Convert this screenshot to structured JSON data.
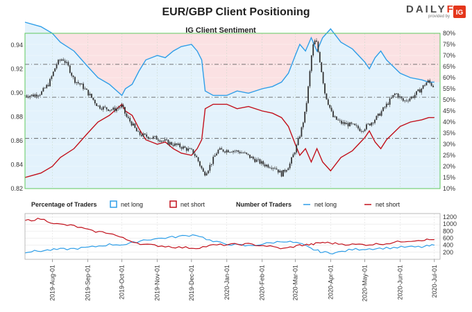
{
  "title": "EUR/GBP Client Positioning",
  "brand": {
    "text": "DAILY",
    "fx": "FX",
    "provided": "provided by",
    "badge": "IG",
    "badge_color": "#e4361b"
  },
  "colors": {
    "net_long": "#2e9ee8",
    "net_short": "#c2101b",
    "long_fill": "#e3f2fc",
    "short_fill": "#fbe1e3",
    "candle": "#333333",
    "plot_border": "#5cc85c"
  },
  "chart_data": [
    {
      "type": "line",
      "title": "IG Client Sentiment",
      "price_axis": {
        "range": [
          0.82,
          0.95
        ],
        "ticks": [
          "0.82",
          "0.84",
          "0.86",
          "0.88",
          "0.90",
          "0.92",
          "0.94"
        ]
      },
      "pct_axis": {
        "range": [
          10,
          80
        ],
        "ticks": [
          "10%",
          "15%",
          "20%",
          "25%",
          "30%",
          "35%",
          "40%",
          "45%",
          "50%",
          "55%",
          "60%",
          "65%",
          "70%",
          "75%",
          "80%"
        ]
      },
      "reference_lines": [
        0.862,
        0.8965,
        0.924
      ],
      "series": [
        {
          "name": "net long",
          "x": [
            "2019-07-08",
            "2019-07-22",
            "2019-08-01",
            "2019-08-08",
            "2019-08-20",
            "2019-09-01",
            "2019-09-10",
            "2019-09-20",
            "2019-10-01",
            "2019-10-04",
            "2019-10-10",
            "2019-10-16",
            "2019-10-22",
            "2019-11-01",
            "2019-11-08",
            "2019-11-15",
            "2019-11-22",
            "2019-12-01",
            "2019-12-06",
            "2019-12-10",
            "2019-12-13",
            "2019-12-20",
            "2020-01-01",
            "2020-01-10",
            "2020-01-20",
            "2020-02-01",
            "2020-02-10",
            "2020-02-18",
            "2020-02-24",
            "2020-03-01",
            "2020-03-05",
            "2020-03-10",
            "2020-03-15",
            "2020-03-20",
            "2020-03-25",
            "2020-04-01",
            "2020-04-10",
            "2020-04-20",
            "2020-05-01",
            "2020-05-05",
            "2020-05-10",
            "2020-05-15",
            "2020-05-20",
            "2020-06-01",
            "2020-06-10",
            "2020-06-20",
            "2020-06-26",
            "2020-07-01"
          ],
          "values": [
            85,
            83,
            80,
            76,
            72,
            65,
            60,
            57,
            52,
            55,
            57,
            63,
            68,
            70,
            69,
            72,
            74,
            75,
            72,
            68,
            54,
            52,
            52,
            54,
            53,
            55,
            56,
            58,
            62,
            70,
            75,
            72,
            78,
            72,
            78,
            82,
            76,
            73,
            67,
            64,
            69,
            72,
            68,
            62,
            60,
            59,
            58,
            58
          ]
        },
        {
          "name": "net short",
          "x": [
            "2019-07-08",
            "2019-07-22",
            "2019-08-01",
            "2019-08-08",
            "2019-08-20",
            "2019-09-01",
            "2019-09-10",
            "2019-09-20",
            "2019-10-01",
            "2019-10-04",
            "2019-10-10",
            "2019-10-16",
            "2019-10-22",
            "2019-11-01",
            "2019-11-08",
            "2019-11-15",
            "2019-11-22",
            "2019-12-01",
            "2019-12-06",
            "2019-12-10",
            "2019-12-13",
            "2019-12-20",
            "2020-01-01",
            "2020-01-10",
            "2020-01-20",
            "2020-02-01",
            "2020-02-10",
            "2020-02-18",
            "2020-02-24",
            "2020-03-01",
            "2020-03-05",
            "2020-03-10",
            "2020-03-15",
            "2020-03-20",
            "2020-03-25",
            "2020-04-01",
            "2020-04-10",
            "2020-04-20",
            "2020-05-01",
            "2020-05-05",
            "2020-05-10",
            "2020-05-15",
            "2020-05-20",
            "2020-06-01",
            "2020-06-10",
            "2020-06-20",
            "2020-06-26",
            "2020-07-01"
          ],
          "values": [
            15,
            17,
            20,
            24,
            28,
            35,
            40,
            43,
            48,
            45,
            43,
            37,
            32,
            30,
            31,
            28,
            26,
            25,
            28,
            32,
            46,
            48,
            48,
            46,
            47,
            45,
            44,
            42,
            38,
            30,
            25,
            28,
            22,
            28,
            22,
            18,
            24,
            27,
            33,
            36,
            31,
            28,
            32,
            38,
            40,
            41,
            42,
            42
          ]
        },
        {
          "name": "EUR/GBP",
          "x": [
            "2019-07-08",
            "2019-07-15",
            "2019-07-22",
            "2019-07-29",
            "2019-08-05",
            "2019-08-10",
            "2019-08-15",
            "2019-08-20",
            "2019-08-27",
            "2019-09-03",
            "2019-09-10",
            "2019-09-17",
            "2019-09-24",
            "2019-10-01",
            "2019-10-05",
            "2019-10-10",
            "2019-10-15",
            "2019-10-21",
            "2019-11-01",
            "2019-11-12",
            "2019-11-22",
            "2019-12-02",
            "2019-12-06",
            "2019-12-12",
            "2019-12-16",
            "2019-12-24",
            "2020-01-06",
            "2020-01-15",
            "2020-01-24",
            "2020-02-03",
            "2020-02-12",
            "2020-02-18",
            "2020-02-25",
            "2020-03-02",
            "2020-03-06",
            "2020-03-10",
            "2020-03-13",
            "2020-03-16",
            "2020-03-19",
            "2020-03-23",
            "2020-03-27",
            "2020-04-03",
            "2020-04-10",
            "2020-04-20",
            "2020-04-28",
            "2020-05-05",
            "2020-05-12",
            "2020-05-20",
            "2020-05-28",
            "2020-06-04",
            "2020-06-12",
            "2020-06-19",
            "2020-06-25",
            "2020-07-01"
          ],
          "values": [
            0.898,
            0.898,
            0.9,
            0.908,
            0.925,
            0.929,
            0.922,
            0.911,
            0.906,
            0.898,
            0.889,
            0.887,
            0.886,
            0.889,
            0.88,
            0.874,
            0.866,
            0.864,
            0.862,
            0.858,
            0.855,
            0.851,
            0.845,
            0.832,
            0.837,
            0.852,
            0.852,
            0.85,
            0.845,
            0.84,
            0.838,
            0.832,
            0.84,
            0.855,
            0.868,
            0.885,
            0.91,
            0.938,
            0.945,
            0.925,
            0.9,
            0.88,
            0.875,
            0.873,
            0.869,
            0.874,
            0.88,
            0.89,
            0.9,
            0.893,
            0.897,
            0.903,
            0.91,
            0.905
          ]
        }
      ],
      "xticks": [
        "2019-Aug-01",
        "2019-Sep-01",
        "2019-Oct-01",
        "2019-Nov-01",
        "2019-Dec-01",
        "2020-Jan-01",
        "2020-Feb-01",
        "2020-Mar-01",
        "2020-Apr-01",
        "2020-May-01",
        "2020-Jun-01",
        "2020-Jul-01"
      ]
    },
    {
      "type": "line",
      "title": "Number of Traders",
      "legend_left_title": "Percentage of Traders",
      "legend": [
        "net long",
        "net short"
      ],
      "y_axis": {
        "range": [
          0,
          1300
        ],
        "ticks": [
          "200",
          "400",
          "600",
          "800",
          "1000",
          "1200"
        ]
      },
      "series": [
        {
          "name": "net long",
          "x": [
            "2019-07-08",
            "2019-07-22",
            "2019-08-05",
            "2019-08-20",
            "2019-09-05",
            "2019-09-20",
            "2019-10-05",
            "2019-10-20",
            "2019-11-05",
            "2019-11-20",
            "2019-12-05",
            "2019-12-20",
            "2020-01-05",
            "2020-01-20",
            "2020-02-05",
            "2020-02-20",
            "2020-03-05",
            "2020-03-15",
            "2020-03-25",
            "2020-04-05",
            "2020-04-20",
            "2020-05-05",
            "2020-05-20",
            "2020-06-05",
            "2020-06-20",
            "2020-07-01"
          ],
          "values": [
            210,
            240,
            280,
            300,
            350,
            420,
            420,
            550,
            600,
            650,
            700,
            500,
            420,
            380,
            450,
            520,
            450,
            300,
            200,
            180,
            280,
            300,
            320,
            350,
            350,
            400
          ]
        },
        {
          "name": "net short",
          "x": [
            "2019-07-08",
            "2019-07-22",
            "2019-08-05",
            "2019-08-20",
            "2019-09-05",
            "2019-09-20",
            "2019-10-05",
            "2019-10-20",
            "2019-11-05",
            "2019-11-20",
            "2019-12-05",
            "2019-12-20",
            "2020-01-05",
            "2020-01-20",
            "2020-02-05",
            "2020-02-20",
            "2020-03-05",
            "2020-03-15",
            "2020-03-25",
            "2020-04-05",
            "2020-04-20",
            "2020-05-05",
            "2020-05-20",
            "2020-06-05",
            "2020-06-20",
            "2020-07-01"
          ],
          "values": [
            1100,
            1150,
            1000,
            950,
            800,
            750,
            560,
            420,
            380,
            340,
            320,
            400,
            420,
            430,
            380,
            300,
            400,
            420,
            480,
            450,
            420,
            420,
            450,
            520,
            550,
            560
          ]
        }
      ],
      "xticks": [
        "2019-Aug-01",
        "2019-Sep-01",
        "2019-Oct-01",
        "2019-Nov-01",
        "2019-Dec-01",
        "2020-Jan-01",
        "2020-Feb-01",
        "2020-Mar-01",
        "2020-Apr-01",
        "2020-May-01",
        "2020-Jun-01",
        "2020-Jul-01"
      ]
    }
  ]
}
